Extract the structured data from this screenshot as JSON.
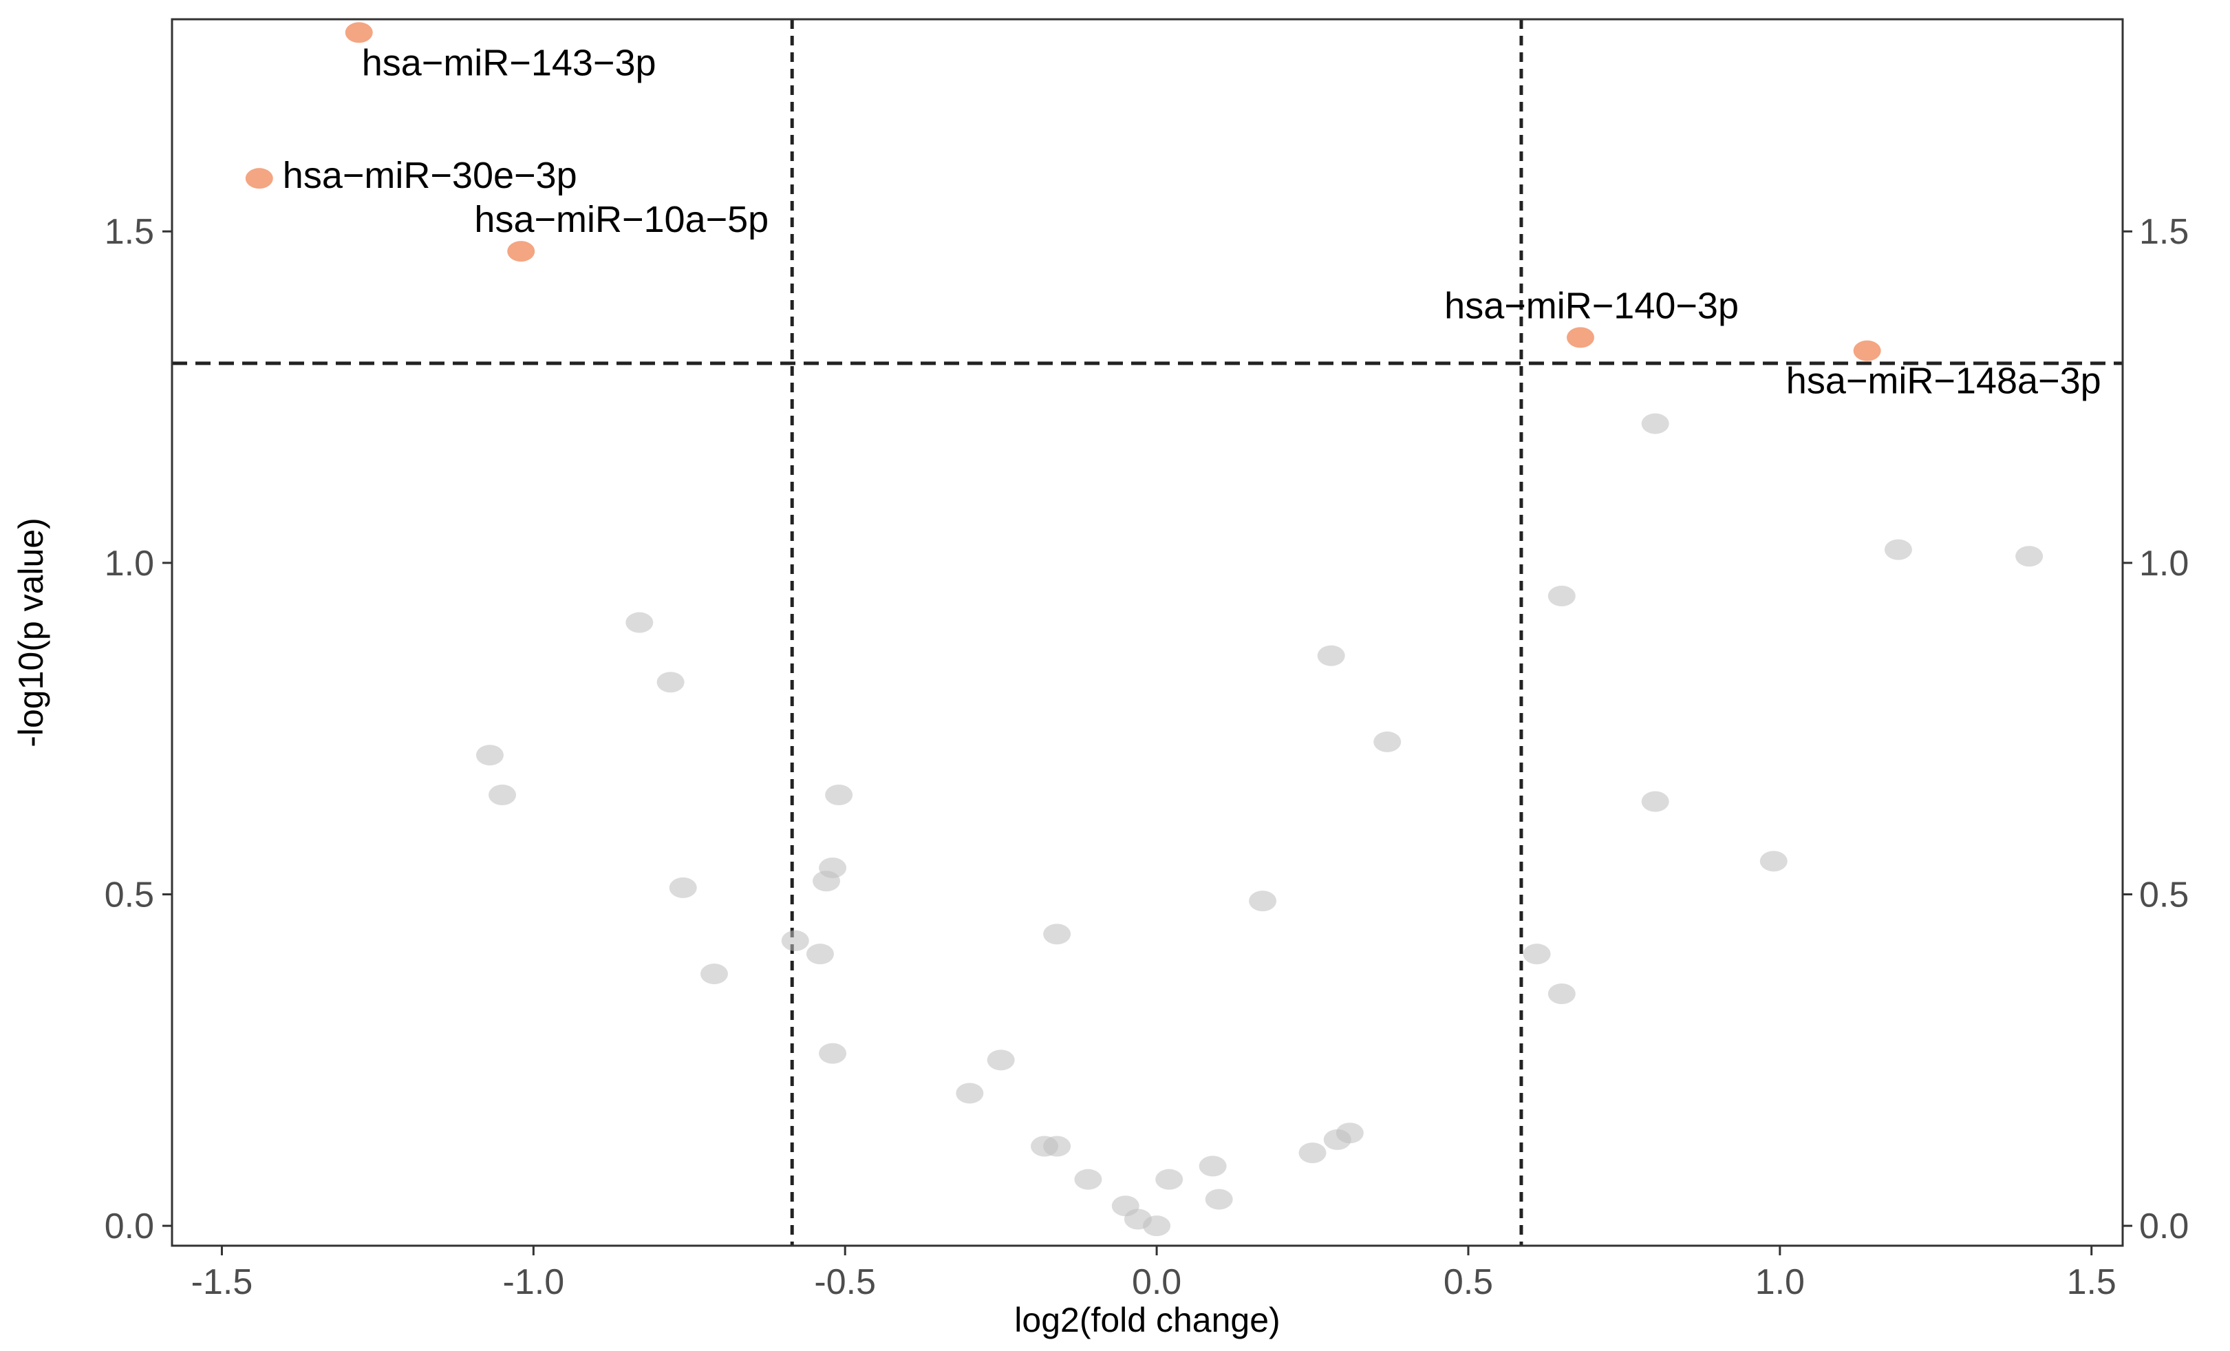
{
  "chart_data": {
    "type": "scatter",
    "title": "",
    "xlabel": "log2(fold change)",
    "ylabel": "-log10(p value)",
    "xlim": [
      -1.58,
      1.55
    ],
    "ylim": [
      -0.03,
      1.82
    ],
    "x_ticks": [
      -1.5,
      -1.0,
      -0.5,
      0.0,
      0.5,
      1.0,
      1.5
    ],
    "x_tick_labels": [
      "-1.5",
      "-1.0",
      "-0.5",
      "0.0",
      "0.5",
      "1.0",
      "1.5"
    ],
    "y_ticks": [
      0.0,
      0.5,
      1.0,
      1.5
    ],
    "y_tick_labels": [
      "0.0",
      "0.5",
      "1.0",
      "1.5"
    ],
    "secondary_y_axis": true,
    "grid": false,
    "thresholds": {
      "fold_change_x": [
        -0.585,
        0.585
      ],
      "p_value_y": 1.301
    },
    "colors": {
      "significant": "#f4a582",
      "nonsignificant": "#bdbdbd",
      "axis_text": "#4d4d4d"
    },
    "significant_points": [
      {
        "x": -1.28,
        "y": 1.8,
        "label": "hsa−miR−143−3p"
      },
      {
        "x": -1.44,
        "y": 1.58,
        "label": "hsa−miR−30e−3p"
      },
      {
        "x": -1.02,
        "y": 1.47,
        "label": "hsa−miR−10a−5p"
      },
      {
        "x": 0.68,
        "y": 1.34,
        "label": "hsa−miR−140−3p"
      },
      {
        "x": 1.14,
        "y": 1.32,
        "label": "hsa−miR−148a−3p"
      }
    ],
    "nonsignificant_points": [
      {
        "x": -0.83,
        "y": 0.91
      },
      {
        "x": -0.78,
        "y": 0.82
      },
      {
        "x": -1.07,
        "y": 0.71
      },
      {
        "x": -1.05,
        "y": 0.65
      },
      {
        "x": -0.76,
        "y": 0.51
      },
      {
        "x": -0.71,
        "y": 0.38
      },
      {
        "x": -0.51,
        "y": 0.65
      },
      {
        "x": -0.52,
        "y": 0.54
      },
      {
        "x": -0.53,
        "y": 0.52
      },
      {
        "x": -0.58,
        "y": 0.43
      },
      {
        "x": -0.54,
        "y": 0.41
      },
      {
        "x": -0.52,
        "y": 0.26
      },
      {
        "x": -0.3,
        "y": 0.2
      },
      {
        "x": -0.25,
        "y": 0.25
      },
      {
        "x": -0.16,
        "y": 0.44
      },
      {
        "x": -0.18,
        "y": 0.12
      },
      {
        "x": -0.16,
        "y": 0.12
      },
      {
        "x": -0.11,
        "y": 0.07
      },
      {
        "x": -0.05,
        "y": 0.03
      },
      {
        "x": -0.03,
        "y": 0.01
      },
      {
        "x": 0.0,
        "y": 0.0
      },
      {
        "x": 0.02,
        "y": 0.07
      },
      {
        "x": 0.09,
        "y": 0.09
      },
      {
        "x": 0.1,
        "y": 0.04
      },
      {
        "x": 0.17,
        "y": 0.49
      },
      {
        "x": 0.25,
        "y": 0.11
      },
      {
        "x": 0.28,
        "y": 0.86
      },
      {
        "x": 0.29,
        "y": 0.13
      },
      {
        "x": 0.31,
        "y": 0.14
      },
      {
        "x": 0.37,
        "y": 0.73
      },
      {
        "x": 0.61,
        "y": 0.41
      },
      {
        "x": 0.65,
        "y": 0.95
      },
      {
        "x": 0.65,
        "y": 0.35
      },
      {
        "x": 0.8,
        "y": 1.21
      },
      {
        "x": 0.8,
        "y": 0.64
      },
      {
        "x": 0.99,
        "y": 0.55
      },
      {
        "x": 1.19,
        "y": 1.02
      },
      {
        "x": 1.4,
        "y": 1.01
      }
    ]
  }
}
